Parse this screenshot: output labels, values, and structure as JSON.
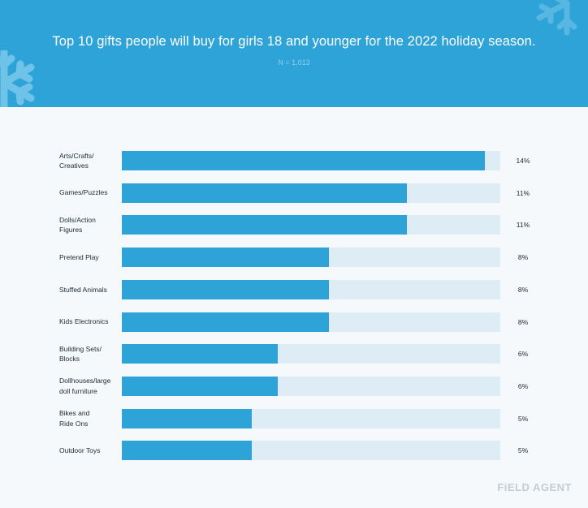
{
  "header": {
    "title": "Top 10 gifts people will buy for girls 18 and younger for the 2022 holiday season.",
    "subtitle": "N = 1,013"
  },
  "brand": "FiELD AGENT",
  "colors": {
    "header_bg": "#2ea3d7",
    "bar": "#2ea3d7",
    "track": "#deedf5",
    "page_bg": "#f5f9fc"
  },
  "chart_data": {
    "type": "bar",
    "orientation": "horizontal",
    "categories": [
      "Arts/Crafts/\nCreatives",
      "Games/Puzzles",
      "Dolls/Action\nFigures",
      "Pretend Play",
      "Stuffed Animals",
      "Kids Electronics",
      "Building Sets/\nBlocks",
      "Dollhouses/large\ndoll furniture",
      "Bikes and\nRide Ons",
      "Outdoor Toys"
    ],
    "values": [
      14,
      11,
      11,
      8,
      8,
      8,
      6,
      6,
      5,
      5
    ],
    "value_labels": [
      "14%",
      "11%",
      "11%",
      "8%",
      "8%",
      "8%",
      "6%",
      "6%",
      "5%",
      "5%"
    ],
    "unit": "%",
    "xlim": [
      0,
      14.6
    ],
    "grid": false,
    "legend": "none"
  }
}
